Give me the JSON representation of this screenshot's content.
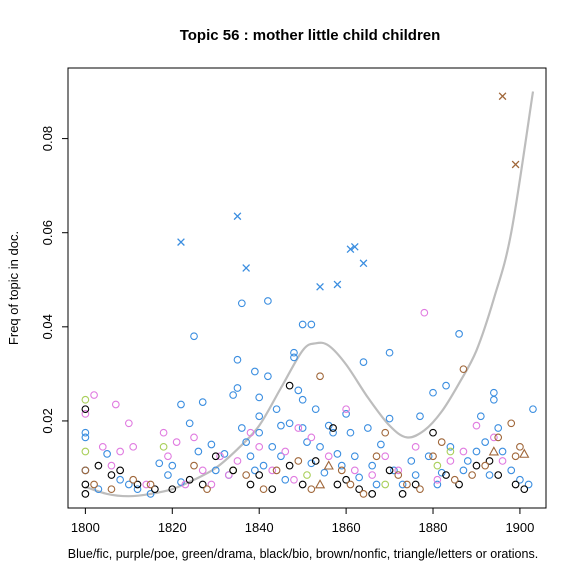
{
  "chart_data": {
    "type": "scatter",
    "title": "Topic 56 : mother little child children",
    "ylabel": "Freq of topic in doc.",
    "caption": "Blue/fic, purple/poe, green/drama, black/bio, brown/nonfic, triangle/letters or orations.",
    "xlim": [
      1796,
      1906
    ],
    "ylim": [
      0.0015,
      0.095
    ],
    "x_ticks": [
      1800,
      1820,
      1840,
      1860,
      1880,
      1900
    ],
    "y_ticks": [
      0.02,
      0.04,
      0.06,
      0.08
    ],
    "y_tick_labels": [
      "0.02",
      "0.04",
      "0.06",
      "0.08"
    ],
    "colors": {
      "fic": "#3b8ee0",
      "poe": "#e07be0",
      "drama": "#a9cf5a",
      "bio": "#000000",
      "nonfic": "#a0673a",
      "trend": "#bdbdbd"
    },
    "trend": {
      "x": [
        1800,
        1805,
        1810,
        1815,
        1820,
        1825,
        1830,
        1835,
        1840,
        1845,
        1850,
        1853,
        1856,
        1860,
        1865,
        1870,
        1874,
        1878,
        1882,
        1886,
        1890,
        1894,
        1898,
        1903
      ],
      "y": [
        0.006,
        0.0045,
        0.004,
        0.0045,
        0.0055,
        0.0075,
        0.01,
        0.014,
        0.019,
        0.027,
        0.035,
        0.0365,
        0.036,
        0.032,
        0.025,
        0.019,
        0.0165,
        0.018,
        0.022,
        0.028,
        0.035,
        0.046,
        0.06,
        0.09
      ]
    },
    "series": [
      {
        "genre": "fic",
        "marker": "x",
        "points": [
          [
            1822,
            0.058
          ],
          [
            1835,
            0.0635
          ],
          [
            1837,
            0.0525
          ],
          [
            1854,
            0.0485
          ],
          [
            1858,
            0.049
          ],
          [
            1861,
            0.0565
          ],
          [
            1862,
            0.057
          ],
          [
            1864,
            0.0535
          ]
        ]
      },
      {
        "genre": "nonfic",
        "marker": "x",
        "points": [
          [
            1896,
            0.089
          ],
          [
            1899,
            0.0745
          ]
        ]
      },
      {
        "genre": "nonfic",
        "marker": "triangle",
        "points": [
          [
            1854,
            0.0065
          ],
          [
            1856,
            0.0105
          ],
          [
            1894,
            0.0135
          ],
          [
            1901,
            0.013
          ]
        ]
      },
      {
        "genre": "fic",
        "marker": "circle",
        "points": [
          [
            1800,
            0.0175
          ],
          [
            1800,
            0.0165
          ],
          [
            1800,
            0.0095
          ],
          [
            1803,
            0.0055
          ],
          [
            1805,
            0.013
          ],
          [
            1808,
            0.0075
          ],
          [
            1810,
            0.0065
          ],
          [
            1812,
            0.0055
          ],
          [
            1815,
            0.0045
          ],
          [
            1817,
            0.011
          ],
          [
            1819,
            0.0085
          ],
          [
            1820,
            0.0105
          ],
          [
            1822,
            0.0235
          ],
          [
            1822,
            0.007
          ],
          [
            1824,
            0.0195
          ],
          [
            1825,
            0.038
          ],
          [
            1826,
            0.0135
          ],
          [
            1827,
            0.024
          ],
          [
            1829,
            0.015
          ],
          [
            1830,
            0.0095
          ],
          [
            1832,
            0.013
          ],
          [
            1833,
            0.0085
          ],
          [
            1834,
            0.0255
          ],
          [
            1835,
            0.033
          ],
          [
            1835,
            0.027
          ],
          [
            1836,
            0.045
          ],
          [
            1836,
            0.0185
          ],
          [
            1837,
            0.0155
          ],
          [
            1838,
            0.0125
          ],
          [
            1839,
            0.0305
          ],
          [
            1839,
            0.0095
          ],
          [
            1840,
            0.025
          ],
          [
            1840,
            0.021
          ],
          [
            1840,
            0.0175
          ],
          [
            1841,
            0.0105
          ],
          [
            1842,
            0.0455
          ],
          [
            1842,
            0.0295
          ],
          [
            1843,
            0.0145
          ],
          [
            1844,
            0.0225
          ],
          [
            1845,
            0.019
          ],
          [
            1845,
            0.0125
          ],
          [
            1846,
            0.0075
          ],
          [
            1847,
            0.0195
          ],
          [
            1848,
            0.0345
          ],
          [
            1848,
            0.0335
          ],
          [
            1849,
            0.0265
          ],
          [
            1850,
            0.0405
          ],
          [
            1850,
            0.0245
          ],
          [
            1850,
            0.0185
          ],
          [
            1851,
            0.0155
          ],
          [
            1852,
            0.0405
          ],
          [
            1852,
            0.011
          ],
          [
            1853,
            0.0225
          ],
          [
            1854,
            0.0145
          ],
          [
            1855,
            0.009
          ],
          [
            1856,
            0.019
          ],
          [
            1857,
            0.0175
          ],
          [
            1858,
            0.013
          ],
          [
            1859,
            0.0105
          ],
          [
            1860,
            0.0215
          ],
          [
            1861,
            0.0175
          ],
          [
            1862,
            0.0125
          ],
          [
            1863,
            0.008
          ],
          [
            1864,
            0.0325
          ],
          [
            1865,
            0.0185
          ],
          [
            1866,
            0.0105
          ],
          [
            1867,
            0.0065
          ],
          [
            1868,
            0.015
          ],
          [
            1870,
            0.0345
          ],
          [
            1870,
            0.0205
          ],
          [
            1871,
            0.0095
          ],
          [
            1873,
            0.0065
          ],
          [
            1875,
            0.0115
          ],
          [
            1876,
            0.0085
          ],
          [
            1877,
            0.021
          ],
          [
            1879,
            0.0125
          ],
          [
            1880,
            0.026
          ],
          [
            1881,
            0.0065
          ],
          [
            1882,
            0.009
          ],
          [
            1883,
            0.0275
          ],
          [
            1884,
            0.0145
          ],
          [
            1886,
            0.0385
          ],
          [
            1887,
            0.0095
          ],
          [
            1888,
            0.0115
          ],
          [
            1890,
            0.0135
          ],
          [
            1891,
            0.021
          ],
          [
            1892,
            0.0155
          ],
          [
            1893,
            0.0085
          ],
          [
            1894,
            0.026
          ],
          [
            1894,
            0.0245
          ],
          [
            1895,
            0.0185
          ],
          [
            1896,
            0.0135
          ],
          [
            1898,
            0.0095
          ],
          [
            1900,
            0.0075
          ],
          [
            1902,
            0.0065
          ],
          [
            1903,
            0.0225
          ]
        ]
      },
      {
        "genre": "poe",
        "marker": "circle",
        "points": [
          [
            1800,
            0.0215
          ],
          [
            1802,
            0.0255
          ],
          [
            1804,
            0.0145
          ],
          [
            1806,
            0.0105
          ],
          [
            1807,
            0.0235
          ],
          [
            1808,
            0.0135
          ],
          [
            1810,
            0.0195
          ],
          [
            1811,
            0.0145
          ],
          [
            1814,
            0.0065
          ],
          [
            1818,
            0.0175
          ],
          [
            1819,
            0.0125
          ],
          [
            1821,
            0.0155
          ],
          [
            1823,
            0.0065
          ],
          [
            1825,
            0.0165
          ],
          [
            1827,
            0.0095
          ],
          [
            1829,
            0.0065
          ],
          [
            1831,
            0.0125
          ],
          [
            1833,
            0.0085
          ],
          [
            1835,
            0.0115
          ],
          [
            1838,
            0.0175
          ],
          [
            1840,
            0.0145
          ],
          [
            1843,
            0.0095
          ],
          [
            1846,
            0.0135
          ],
          [
            1848,
            0.0075
          ],
          [
            1849,
            0.0185
          ],
          [
            1852,
            0.0165
          ],
          [
            1856,
            0.0125
          ],
          [
            1860,
            0.0225
          ],
          [
            1862,
            0.0095
          ],
          [
            1866,
            0.0085
          ],
          [
            1869,
            0.0125
          ],
          [
            1872,
            0.0095
          ],
          [
            1876,
            0.0145
          ],
          [
            1878,
            0.043
          ],
          [
            1881,
            0.0075
          ],
          [
            1884,
            0.0115
          ],
          [
            1887,
            0.0135
          ],
          [
            1890,
            0.019
          ],
          [
            1894,
            0.0165
          ],
          [
            1896,
            0.0115
          ]
        ]
      },
      {
        "genre": "drama",
        "marker": "circle",
        "points": [
          [
            1800,
            0.0245
          ],
          [
            1800,
            0.0135
          ],
          [
            1818,
            0.0145
          ],
          [
            1834,
            0.0095
          ],
          [
            1851,
            0.0085
          ],
          [
            1869,
            0.0065
          ],
          [
            1881,
            0.0105
          ],
          [
            1884,
            0.0135
          ]
        ]
      },
      {
        "genre": "bio",
        "marker": "circle",
        "points": [
          [
            1800,
            0.0225
          ],
          [
            1800,
            0.0065
          ],
          [
            1800,
            0.0045
          ],
          [
            1803,
            0.0105
          ],
          [
            1806,
            0.0085
          ],
          [
            1808,
            0.0095
          ],
          [
            1812,
            0.0065
          ],
          [
            1816,
            0.0055
          ],
          [
            1820,
            0.0055
          ],
          [
            1824,
            0.0075
          ],
          [
            1827,
            0.0065
          ],
          [
            1830,
            0.0125
          ],
          [
            1834,
            0.0095
          ],
          [
            1838,
            0.0065
          ],
          [
            1840,
            0.0085
          ],
          [
            1843,
            0.0055
          ],
          [
            1847,
            0.0275
          ],
          [
            1847,
            0.0105
          ],
          [
            1850,
            0.0065
          ],
          [
            1853,
            0.0115
          ],
          [
            1857,
            0.0185
          ],
          [
            1858,
            0.0065
          ],
          [
            1860,
            0.0075
          ],
          [
            1863,
            0.0055
          ],
          [
            1866,
            0.0045
          ],
          [
            1870,
            0.0095
          ],
          [
            1873,
            0.0045
          ],
          [
            1876,
            0.0065
          ],
          [
            1880,
            0.0175
          ],
          [
            1883,
            0.0085
          ],
          [
            1886,
            0.0065
          ],
          [
            1890,
            0.0105
          ],
          [
            1893,
            0.0115
          ],
          [
            1895,
            0.0085
          ],
          [
            1899,
            0.0065
          ],
          [
            1901,
            0.0055
          ]
        ]
      },
      {
        "genre": "nonfic",
        "marker": "circle",
        "points": [
          [
            1800,
            0.0095
          ],
          [
            1802,
            0.0065
          ],
          [
            1806,
            0.0055
          ],
          [
            1811,
            0.0075
          ],
          [
            1815,
            0.0065
          ],
          [
            1825,
            0.0105
          ],
          [
            1828,
            0.0055
          ],
          [
            1837,
            0.0085
          ],
          [
            1841,
            0.0055
          ],
          [
            1844,
            0.0095
          ],
          [
            1849,
            0.0115
          ],
          [
            1852,
            0.0055
          ],
          [
            1854,
            0.0295
          ],
          [
            1859,
            0.0095
          ],
          [
            1861,
            0.0065
          ],
          [
            1864,
            0.0045
          ],
          [
            1867,
            0.0125
          ],
          [
            1869,
            0.0175
          ],
          [
            1872,
            0.0085
          ],
          [
            1874,
            0.0065
          ],
          [
            1877,
            0.0055
          ],
          [
            1880,
            0.0125
          ],
          [
            1882,
            0.0155
          ],
          [
            1885,
            0.0075
          ],
          [
            1887,
            0.031
          ],
          [
            1889,
            0.0085
          ],
          [
            1892,
            0.0105
          ],
          [
            1895,
            0.0165
          ],
          [
            1898,
            0.0195
          ],
          [
            1899,
            0.0125
          ],
          [
            1900,
            0.0145
          ]
        ]
      }
    ]
  }
}
